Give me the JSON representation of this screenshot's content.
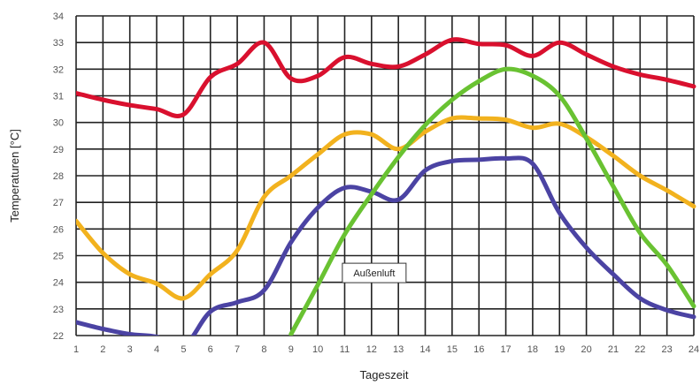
{
  "chart_data": {
    "type": "line",
    "title": "",
    "xlabel": "Tageszeit",
    "ylabel": "Temperaturen [°C]",
    "x": [
      1,
      2,
      3,
      4,
      5,
      6,
      7,
      8,
      9,
      10,
      11,
      12,
      13,
      14,
      15,
      16,
      17,
      18,
      19,
      20,
      21,
      22,
      23,
      24
    ],
    "xlim": [
      1,
      24
    ],
    "ylim": [
      22,
      34
    ],
    "yticks": [
      22,
      23,
      24,
      25,
      26,
      27,
      28,
      29,
      30,
      31,
      32,
      33,
      34
    ],
    "grid": true,
    "legend": "none",
    "annotation": {
      "text": "Außenluft",
      "x": 12.1,
      "y": 24.35
    },
    "series": [
      {
        "color": "#d9102e",
        "values": [
          31.1,
          30.85,
          30.65,
          30.5,
          30.3,
          31.7,
          32.2,
          33.0,
          31.65,
          31.75,
          32.45,
          32.2,
          32.1,
          32.55,
          33.1,
          32.95,
          32.9,
          32.5,
          33.0,
          32.55,
          32.1,
          31.8,
          31.6,
          31.35
        ]
      },
      {
        "color": "#f2b21e",
        "values": [
          26.3,
          25.1,
          24.3,
          23.95,
          23.4,
          24.3,
          25.2,
          27.2,
          28.0,
          28.8,
          29.55,
          29.55,
          29.0,
          29.65,
          30.15,
          30.15,
          30.1,
          29.8,
          29.95,
          29.45,
          28.75,
          28.0,
          27.45,
          26.85
        ]
      },
      {
        "color": "#4b43a3",
        "values": [
          22.5,
          22.25,
          22.05,
          21.95,
          21.6,
          22.9,
          23.25,
          23.7,
          25.5,
          26.8,
          27.55,
          27.4,
          27.1,
          28.2,
          28.55,
          28.6,
          28.65,
          28.45,
          26.6,
          25.3,
          24.3,
          23.4,
          22.95,
          22.7
        ]
      },
      {
        "color": "#69c232",
        "values": [
          null,
          null,
          null,
          null,
          null,
          null,
          null,
          null,
          22.05,
          23.9,
          25.8,
          27.3,
          28.7,
          29.9,
          30.85,
          31.55,
          32.0,
          31.75,
          31.0,
          29.4,
          27.6,
          25.85,
          24.65,
          23.1
        ]
      }
    ]
  }
}
